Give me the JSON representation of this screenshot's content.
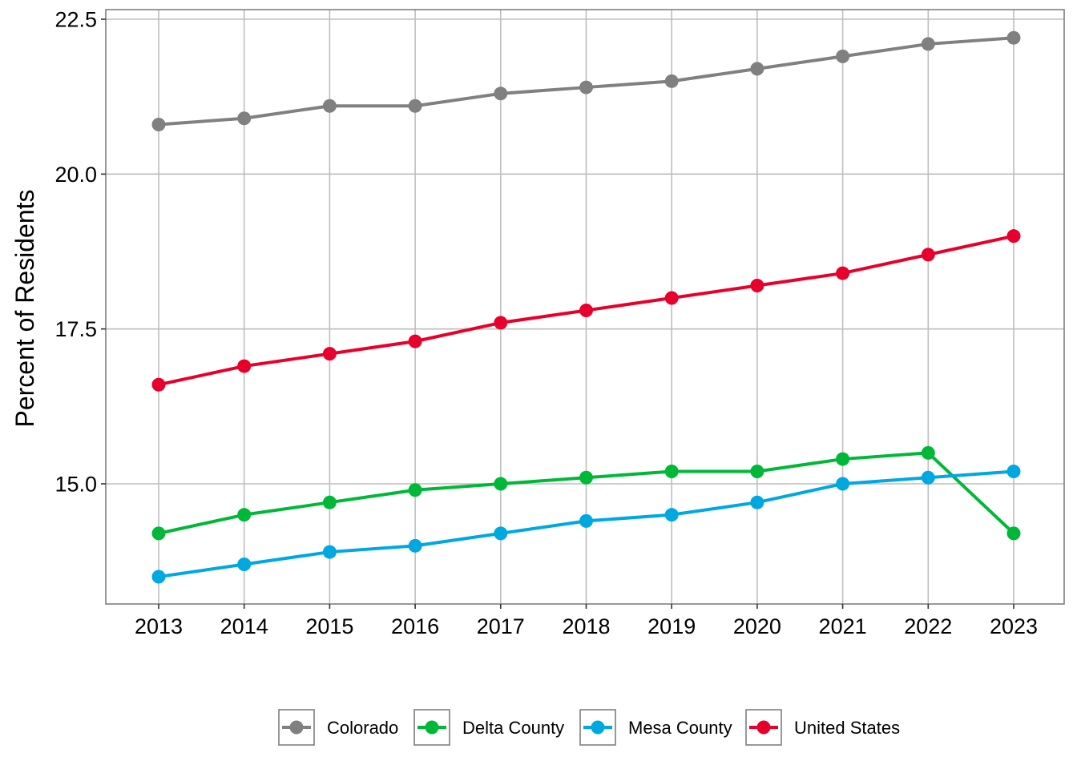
{
  "chart_data": {
    "type": "line",
    "title": "",
    "xlabel": "",
    "ylabel": "Percent of Residents",
    "x": [
      2013,
      2014,
      2015,
      2016,
      2017,
      2018,
      2019,
      2020,
      2021,
      2022,
      2023
    ],
    "x_tick_labels": [
      "2013",
      "2014",
      "2015",
      "2016",
      "2017",
      "2018",
      "2019",
      "2020",
      "2021",
      "2022",
      "2023"
    ],
    "y_ticks": [
      15.0,
      17.5,
      20.0,
      22.5
    ],
    "y_tick_labels": [
      "15.0",
      "17.5",
      "20.0",
      "22.5"
    ],
    "ylim": [
      13.05,
      22.65
    ],
    "xlim": [
      2012.38,
      2023.6
    ],
    "grid": true,
    "legend_position": "bottom",
    "series": [
      {
        "name": "Colorado",
        "color": "#808080",
        "values": [
          20.8,
          20.9,
          21.1,
          21.1,
          21.3,
          21.4,
          21.5,
          21.7,
          21.9,
          22.1,
          22.2
        ]
      },
      {
        "name": "Delta County",
        "color": "#00B838",
        "values": [
          14.2,
          14.5,
          14.7,
          14.9,
          15.0,
          15.1,
          15.2,
          15.2,
          15.4,
          15.5,
          14.2
        ]
      },
      {
        "name": "Mesa County",
        "color": "#00A8E0",
        "values": [
          13.5,
          13.7,
          13.9,
          14.0,
          14.2,
          14.4,
          14.5,
          14.7,
          15.0,
          15.1,
          15.2
        ]
      },
      {
        "name": "United States",
        "color": "#E8002D",
        "values": [
          16.6,
          16.9,
          17.1,
          17.3,
          17.6,
          17.8,
          18.0,
          18.2,
          18.4,
          18.7,
          19.0
        ]
      }
    ]
  }
}
